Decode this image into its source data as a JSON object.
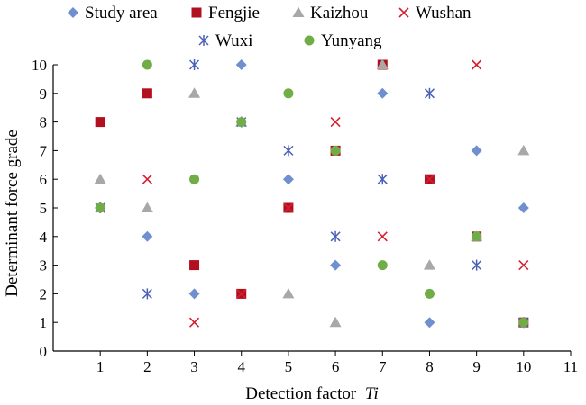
{
  "chart_data": {
    "type": "scatter",
    "xlabel": "Detection factor",
    "xlabel_italic": "Ti",
    "ylabel": "Determinant force grade",
    "xlim": [
      0,
      11
    ],
    "ylim": [
      0,
      10
    ],
    "xticks": [
      "1",
      "2",
      "3",
      "4",
      "5",
      "6",
      "7",
      "8",
      "9",
      "10",
      "11"
    ],
    "yticks": [
      "0",
      "1",
      "2",
      "3",
      "4",
      "5",
      "6",
      "7",
      "8",
      "9",
      "10"
    ],
    "grid": false,
    "legend_position": "top",
    "series": [
      {
        "name": "Study area",
        "marker": "diamond",
        "color": "#6f8fce",
        "x": [
          1,
          2,
          3,
          4,
          5,
          6,
          7,
          8,
          9,
          10
        ],
        "y": [
          5,
          4,
          2,
          10,
          6,
          3,
          9,
          1,
          7,
          5
        ]
      },
      {
        "name": "Fengjie",
        "marker": "square",
        "color": "#b01020",
        "x": [
          1,
          2,
          3,
          4,
          5,
          6,
          7,
          8,
          9,
          10
        ],
        "y": [
          8,
          9,
          3,
          2,
          5,
          7,
          10,
          6,
          4,
          1
        ]
      },
      {
        "name": "Kaizhou",
        "marker": "triangle",
        "color": "#a8a8a8",
        "x": [
          1,
          2,
          3,
          4,
          5,
          6,
          7,
          8,
          9,
          10
        ],
        "y": [
          6,
          5,
          9,
          8,
          2,
          1,
          10,
          3,
          4,
          7
        ]
      },
      {
        "name": "Wushan",
        "marker": "x",
        "color": "#d42030",
        "x": [
          1,
          2,
          3,
          4,
          5,
          6,
          7,
          8,
          9,
          10
        ],
        "y": [
          5,
          6,
          1,
          2,
          5,
          8,
          4,
          6,
          10,
          3
        ]
      },
      {
        "name": "Wuxi",
        "marker": "star",
        "color": "#4a60b8",
        "x": [
          1,
          2,
          3,
          4,
          5,
          6,
          7,
          8,
          9,
          10
        ],
        "y": [
          5,
          2,
          10,
          8,
          7,
          4,
          6,
          9,
          3,
          1
        ]
      },
      {
        "name": "Yunyang",
        "marker": "circle",
        "color": "#70ad47",
        "x": [
          1,
          2,
          3,
          4,
          5,
          6,
          7,
          8,
          9,
          10
        ],
        "y": [
          5,
          10,
          6,
          8,
          9,
          7,
          3,
          2,
          4,
          1
        ]
      }
    ]
  }
}
